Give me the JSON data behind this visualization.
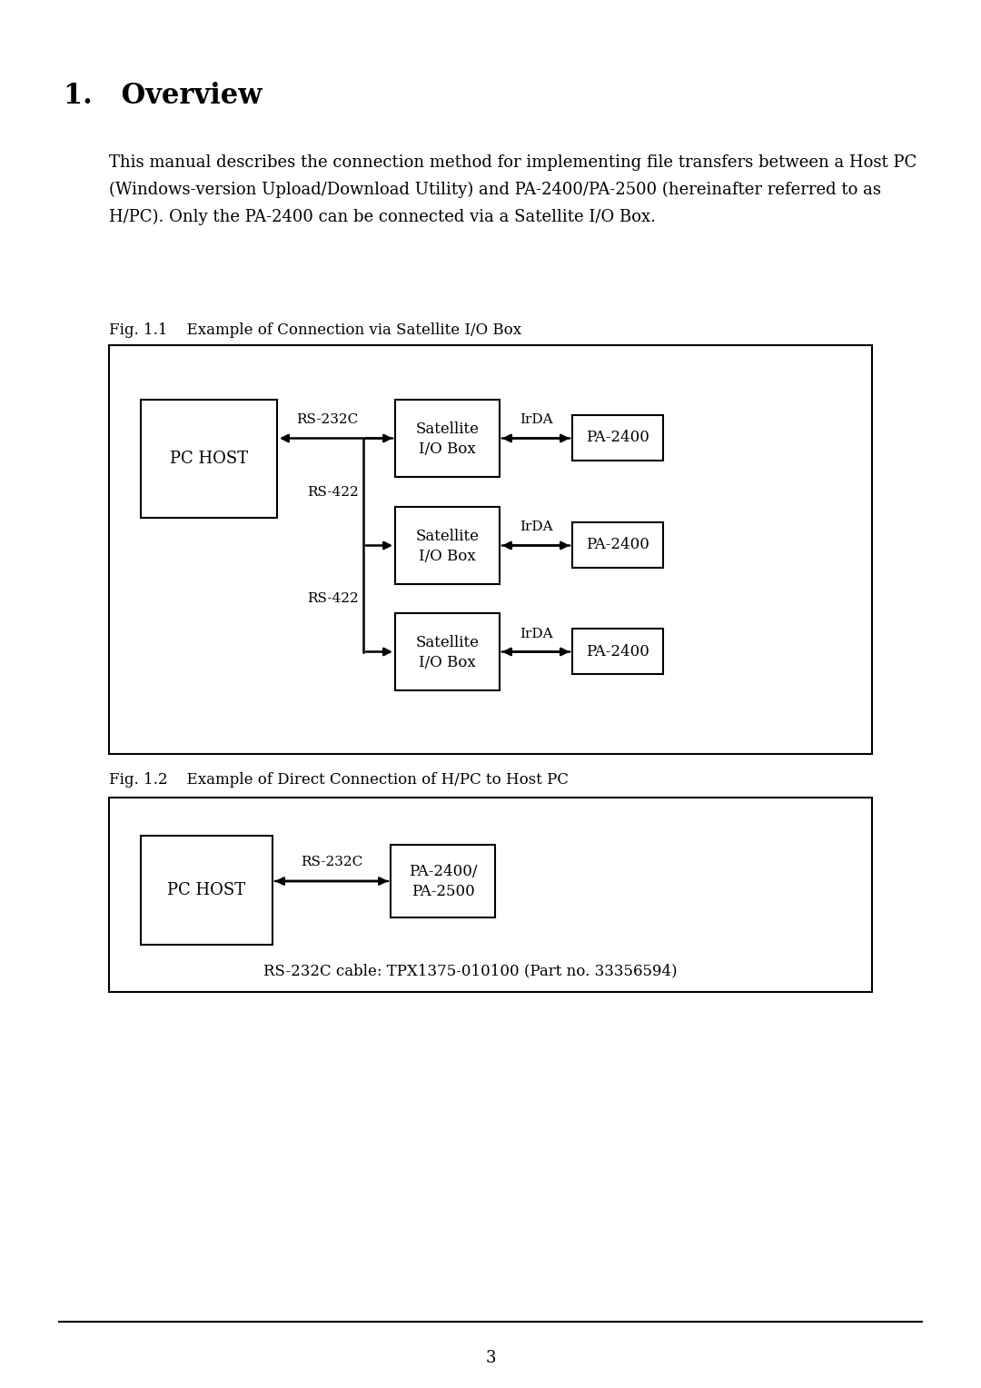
{
  "bg_color": "#ffffff",
  "title": "1.   Overview",
  "body_line1": "This manual describes the connection method for implementing file transfers between a Host PC",
  "body_line2": "(Windows-version Upload/Download Utility) and PA-2400/PA-2500 (hereinafter referred to as",
  "body_line3": "H/PC). Only the PA-2400 can be connected via a Satellite I/O Box.",
  "fig1_caption": "Fig. 1.1    Example of Connection via Satellite I/O Box",
  "fig2_caption": "Fig. 1.2    Example of Direct Connection of H/PC to Host PC",
  "page_number": "3",
  "fig2_note": "RS-232C cable: TPX1375-010100 (Part no. 33356594)"
}
